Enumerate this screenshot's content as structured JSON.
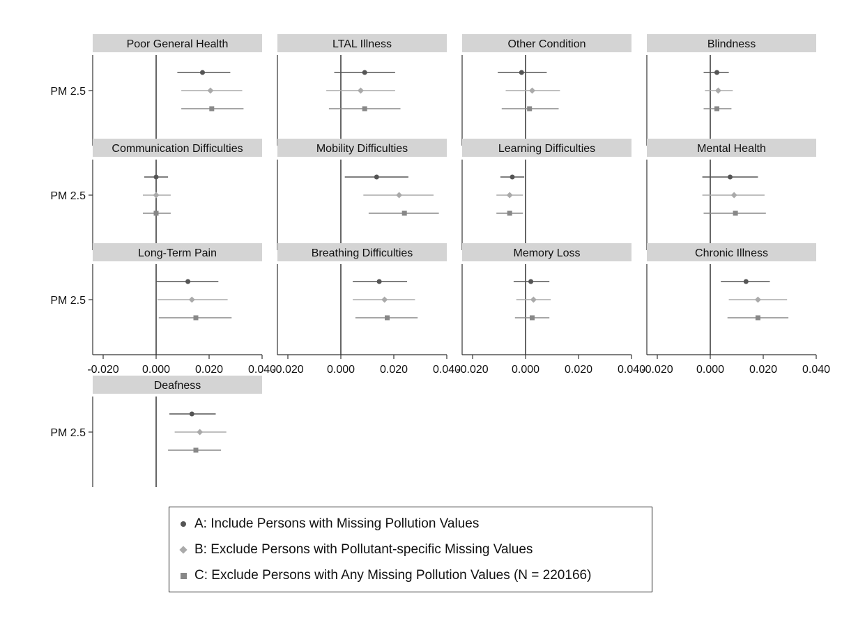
{
  "chart_data": {
    "type": "forest",
    "row_label": "PM 2.5",
    "x_ticks": [
      "-0.020",
      "0.000",
      "0.020",
      "0.040"
    ],
    "xlim": [
      -0.025,
      0.045
    ],
    "reference_line": 0,
    "grid": false,
    "legend_position": "bottom",
    "series": [
      {
        "key": "A",
        "name": "A: Include Persons with Missing Pollution Values",
        "marker": "circle",
        "color": "#555555"
      },
      {
        "key": "B",
        "name": "B: Exclude Persons with Pollutant-specific Missing Values",
        "marker": "diamond",
        "color": "#aaaaaa"
      },
      {
        "key": "C",
        "name": "C: Exclude Persons with Any Missing Pollution Values (N = 220166)",
        "marker": "square",
        "color": "#888888"
      }
    ],
    "panels": [
      {
        "title": "Poor General Health",
        "estimates": [
          {
            "series": "A",
            "est": 0.0175,
            "lo": 0.008,
            "hi": 0.028
          },
          {
            "series": "B",
            "est": 0.0205,
            "lo": 0.0095,
            "hi": 0.0325
          },
          {
            "series": "C",
            "est": 0.021,
            "lo": 0.0095,
            "hi": 0.033
          }
        ]
      },
      {
        "title": "LTAL Illness",
        "estimates": [
          {
            "series": "A",
            "est": 0.009,
            "lo": -0.0025,
            "hi": 0.0205
          },
          {
            "series": "B",
            "est": 0.0075,
            "lo": -0.0055,
            "hi": 0.0205
          },
          {
            "series": "C",
            "est": 0.009,
            "lo": -0.0045,
            "hi": 0.0225
          }
        ]
      },
      {
        "title": "Other Condition",
        "estimates": [
          {
            "series": "A",
            "est": -0.0015,
            "lo": -0.0105,
            "hi": 0.008
          },
          {
            "series": "B",
            "est": 0.0025,
            "lo": -0.0075,
            "hi": 0.013
          },
          {
            "series": "C",
            "est": 0.0015,
            "lo": -0.009,
            "hi": 0.0125
          }
        ]
      },
      {
        "title": "Blindness",
        "estimates": [
          {
            "series": "A",
            "est": 0.0025,
            "lo": -0.0025,
            "hi": 0.007
          },
          {
            "series": "B",
            "est": 0.003,
            "lo": -0.002,
            "hi": 0.0085
          },
          {
            "series": "C",
            "est": 0.0025,
            "lo": -0.0025,
            "hi": 0.008
          }
        ]
      },
      {
        "title": "Communication Difficulties",
        "estimates": [
          {
            "series": "A",
            "est": 0.0,
            "lo": -0.0045,
            "hi": 0.0045
          },
          {
            "series": "B",
            "est": 0.0,
            "lo": -0.005,
            "hi": 0.0055
          },
          {
            "series": "C",
            "est": 0.0,
            "lo": -0.005,
            "hi": 0.0055
          }
        ]
      },
      {
        "title": "Mobility Difficulties",
        "estimates": [
          {
            "series": "A",
            "est": 0.0135,
            "lo": 0.0015,
            "hi": 0.0255
          },
          {
            "series": "B",
            "est": 0.022,
            "lo": 0.0085,
            "hi": 0.035
          },
          {
            "series": "C",
            "est": 0.024,
            "lo": 0.0105,
            "hi": 0.037
          }
        ]
      },
      {
        "title": "Learning Difficulties",
        "estimates": [
          {
            "series": "A",
            "est": -0.005,
            "lo": -0.0095,
            "hi": -0.0005
          },
          {
            "series": "B",
            "est": -0.006,
            "lo": -0.011,
            "hi": -0.001
          },
          {
            "series": "C",
            "est": -0.006,
            "lo": -0.011,
            "hi": -0.001
          }
        ]
      },
      {
        "title": "Mental Health",
        "estimates": [
          {
            "series": "A",
            "est": 0.0075,
            "lo": -0.003,
            "hi": 0.018
          },
          {
            "series": "B",
            "est": 0.009,
            "lo": -0.003,
            "hi": 0.0205
          },
          {
            "series": "C",
            "est": 0.0095,
            "lo": -0.0025,
            "hi": 0.021
          }
        ]
      },
      {
        "title": "Long-Term Pain",
        "estimates": [
          {
            "series": "A",
            "est": 0.012,
            "lo": 0.0,
            "hi": 0.0235
          },
          {
            "series": "B",
            "est": 0.0135,
            "lo": 0.0005,
            "hi": 0.027
          },
          {
            "series": "C",
            "est": 0.015,
            "lo": 0.001,
            "hi": 0.0285
          }
        ]
      },
      {
        "title": "Breathing Difficulties",
        "estimates": [
          {
            "series": "A",
            "est": 0.0145,
            "lo": 0.0045,
            "hi": 0.025
          },
          {
            "series": "B",
            "est": 0.0165,
            "lo": 0.0045,
            "hi": 0.028
          },
          {
            "series": "C",
            "est": 0.0175,
            "lo": 0.0055,
            "hi": 0.029
          }
        ]
      },
      {
        "title": "Memory Loss",
        "estimates": [
          {
            "series": "A",
            "est": 0.002,
            "lo": -0.0045,
            "hi": 0.009
          },
          {
            "series": "B",
            "est": 0.003,
            "lo": -0.0035,
            "hi": 0.0095
          },
          {
            "series": "C",
            "est": 0.0025,
            "lo": -0.004,
            "hi": 0.009
          }
        ]
      },
      {
        "title": "Chronic Illness",
        "estimates": [
          {
            "series": "A",
            "est": 0.0135,
            "lo": 0.004,
            "hi": 0.0225
          },
          {
            "series": "B",
            "est": 0.018,
            "lo": 0.007,
            "hi": 0.029
          },
          {
            "series": "C",
            "est": 0.018,
            "lo": 0.0065,
            "hi": 0.0295
          }
        ]
      },
      {
        "title": "Deafness",
        "estimates": [
          {
            "series": "A",
            "est": 0.0135,
            "lo": 0.005,
            "hi": 0.0225
          },
          {
            "series": "B",
            "est": 0.0165,
            "lo": 0.007,
            "hi": 0.0265
          },
          {
            "series": "C",
            "est": 0.015,
            "lo": 0.0045,
            "hi": 0.0245
          }
        ]
      }
    ]
  }
}
